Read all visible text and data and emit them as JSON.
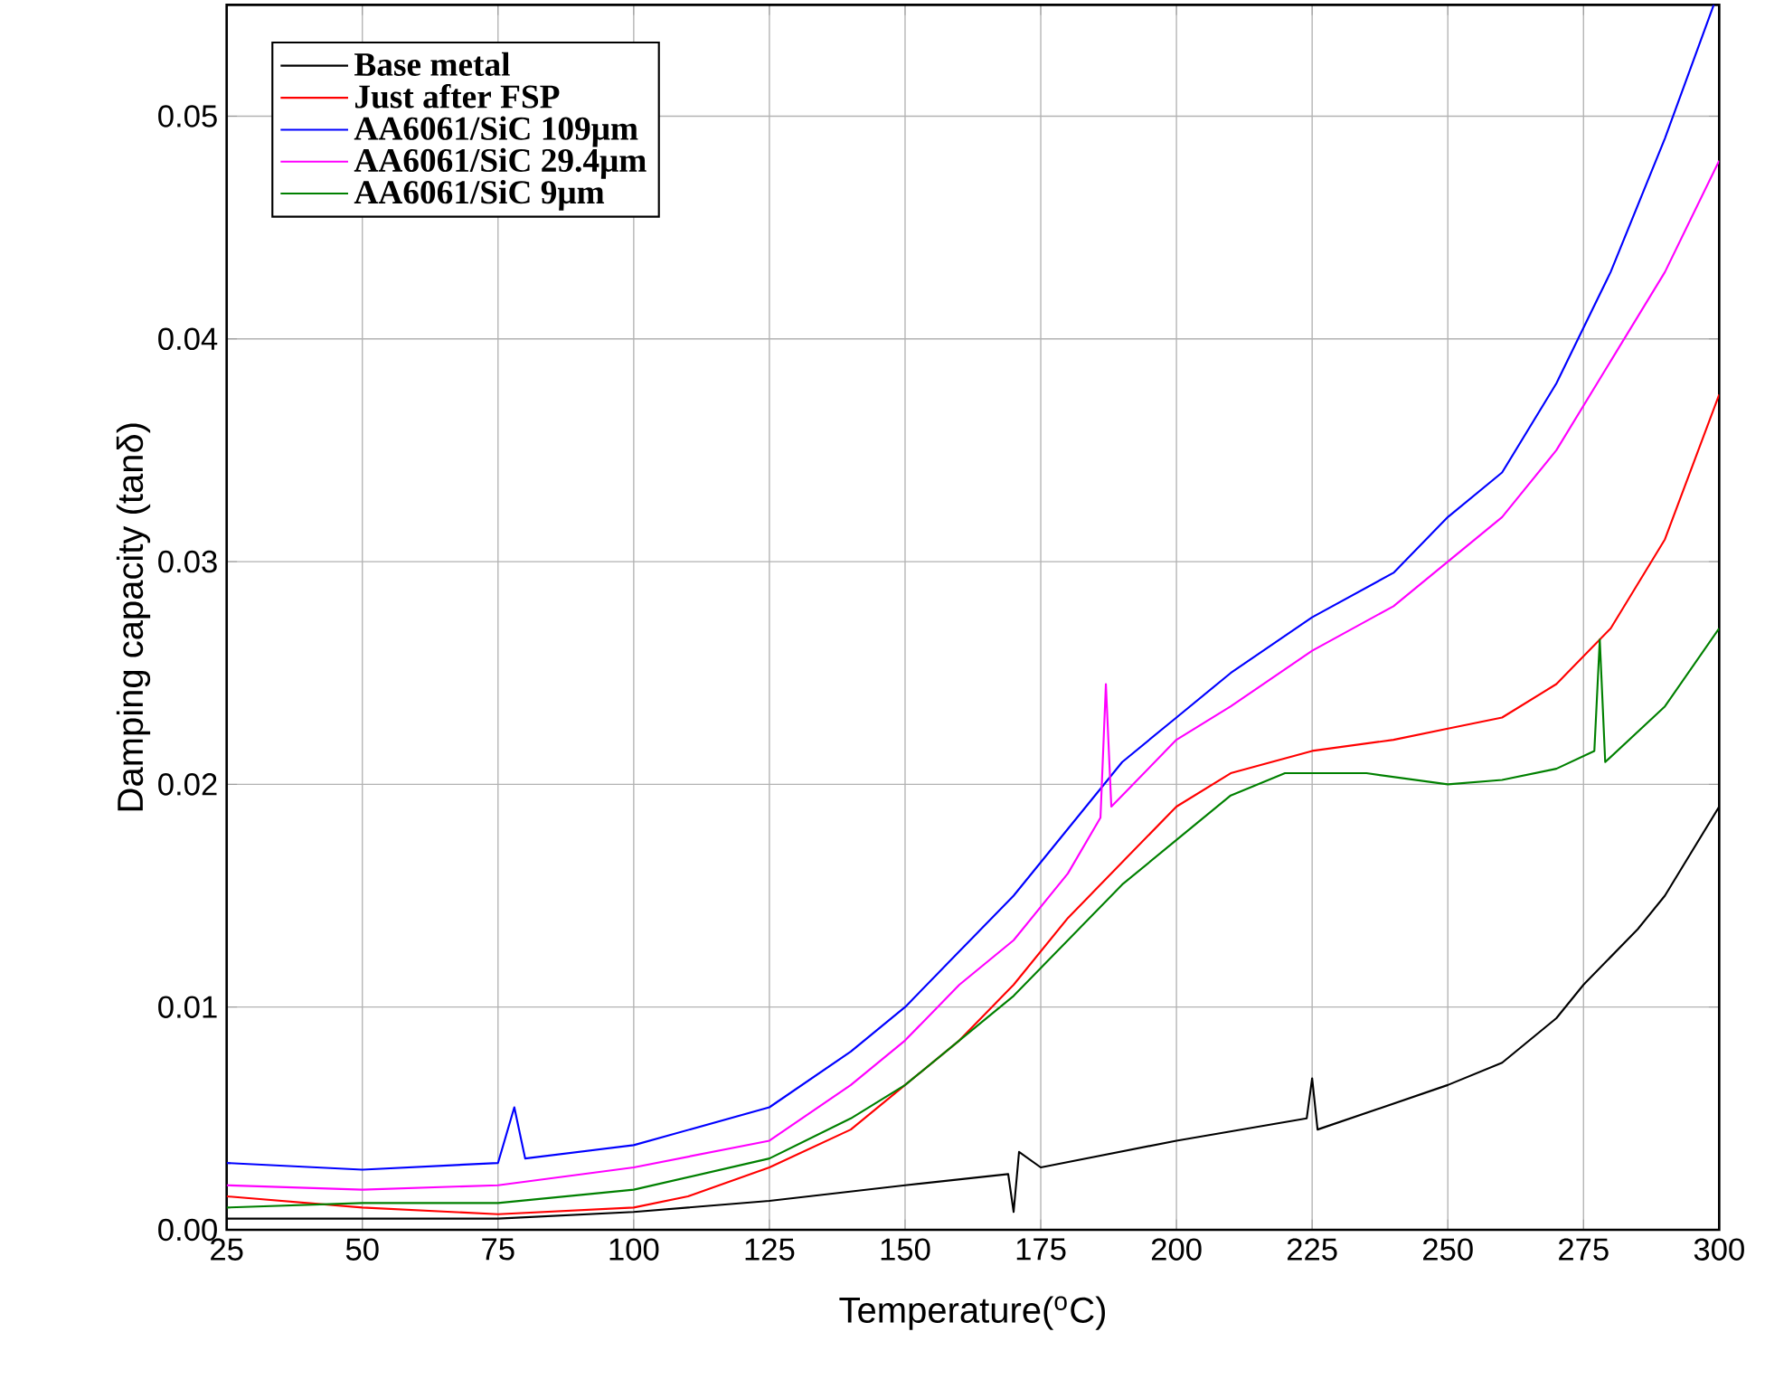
{
  "chart_data": {
    "type": "line",
    "xlabel": "Temperature($^{o}$C)",
    "ylabel": "Damping capacity (tanδ)",
    "xlim": [
      25,
      300
    ],
    "ylim": [
      0,
      0.055
    ],
    "xticks": [
      25,
      50,
      75,
      100,
      125,
      150,
      175,
      200,
      225,
      250,
      275,
      300
    ],
    "yticks": [
      {
        "value": 0,
        "label": "0.00"
      },
      {
        "value": 0.01,
        "label": "0.01"
      },
      {
        "value": 0.02,
        "label": "0.02"
      },
      {
        "value": 0.03,
        "label": "0.03"
      },
      {
        "value": 0.04,
        "label": "0.04"
      },
      {
        "value": 0.05,
        "label": "0.05"
      }
    ],
    "grid": true,
    "legend": "top left",
    "marker": "none",
    "line_style": "solid",
    "series": [
      {
        "name": "Base metal",
        "color": "#000000",
        "x": [
          25,
          50,
          75,
          100,
          125,
          150,
          169,
          170,
          171,
          175,
          200,
          224,
          225,
          226,
          250,
          260,
          270,
          275,
          285,
          290,
          300
        ],
        "values": [
          0.0005,
          0.0005,
          0.0005,
          0.0008,
          0.0013,
          0.002,
          0.0025,
          0.0008,
          0.0035,
          0.0028,
          0.004,
          0.005,
          0.0068,
          0.0045,
          0.0065,
          0.0075,
          0.0095,
          0.011,
          0.0135,
          0.015,
          0.019
        ]
      },
      {
        "name": "Just after FSP",
        "color": "#ff0000",
        "x": [
          25,
          50,
          75,
          100,
          110,
          125,
          140,
          150,
          160,
          170,
          180,
          190,
          200,
          210,
          225,
          240,
          250,
          260,
          270,
          280,
          290,
          300
        ],
        "values": [
          0.0015,
          0.001,
          0.0007,
          0.001,
          0.0015,
          0.0028,
          0.0045,
          0.0065,
          0.0085,
          0.011,
          0.014,
          0.0165,
          0.019,
          0.0205,
          0.0215,
          0.022,
          0.0225,
          0.023,
          0.0245,
          0.027,
          0.031,
          0.0375
        ]
      },
      {
        "name": "AA6061/SiC 109μm",
        "color": "#0000ff",
        "x": [
          25,
          50,
          75,
          78,
          80,
          100,
          125,
          140,
          150,
          160,
          170,
          180,
          190,
          200,
          210,
          225,
          240,
          250,
          260,
          270,
          280,
          290,
          299
        ],
        "values": [
          0.003,
          0.0027,
          0.003,
          0.0055,
          0.0032,
          0.0038,
          0.0055,
          0.008,
          0.01,
          0.0125,
          0.015,
          0.018,
          0.021,
          0.023,
          0.025,
          0.0275,
          0.0295,
          0.032,
          0.034,
          0.038,
          0.043,
          0.049,
          0.055
        ]
      },
      {
        "name": "AA6061/SiC 29.4μm",
        "color": "#ff00ff",
        "x": [
          25,
          50,
          75,
          100,
          125,
          140,
          150,
          160,
          170,
          180,
          186,
          187,
          188,
          190,
          200,
          210,
          225,
          240,
          250,
          260,
          270,
          280,
          290,
          300
        ],
        "values": [
          0.002,
          0.0018,
          0.002,
          0.0028,
          0.004,
          0.0065,
          0.0085,
          0.011,
          0.013,
          0.016,
          0.0185,
          0.0245,
          0.019,
          0.0195,
          0.022,
          0.0235,
          0.026,
          0.028,
          0.03,
          0.032,
          0.035,
          0.039,
          0.043,
          0.048
        ]
      },
      {
        "name": "AA6061/SiC 9μm",
        "color": "#008000",
        "x": [
          25,
          50,
          75,
          100,
          125,
          140,
          150,
          160,
          170,
          180,
          190,
          200,
          210,
          220,
          235,
          250,
          260,
          270,
          277,
          278,
          279,
          290,
          300
        ],
        "values": [
          0.001,
          0.0012,
          0.0012,
          0.0018,
          0.0032,
          0.005,
          0.0065,
          0.0085,
          0.0105,
          0.013,
          0.0155,
          0.0175,
          0.0195,
          0.0205,
          0.0205,
          0.02,
          0.0202,
          0.0207,
          0.0215,
          0.0265,
          0.021,
          0.0235,
          0.027
        ]
      }
    ]
  }
}
